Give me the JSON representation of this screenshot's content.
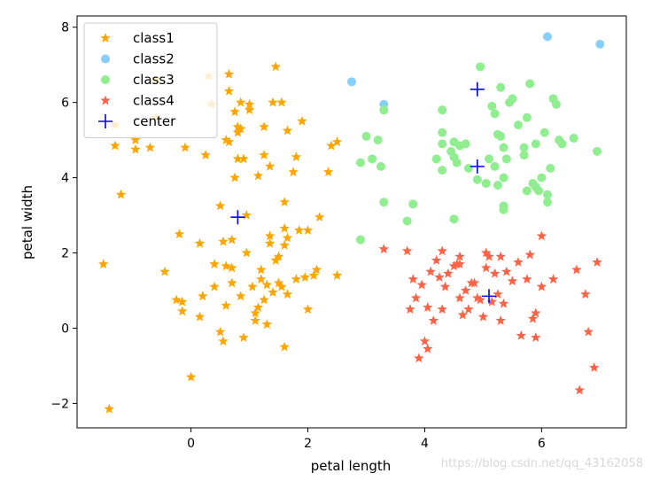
{
  "chart_data": {
    "type": "scatter",
    "xlabel": "petal length",
    "ylabel": "petal width",
    "xlim": [
      -1.95,
      7.45
    ],
    "ylim": [
      -2.65,
      8.3
    ],
    "xticks": [
      0,
      2,
      4,
      6
    ],
    "yticks": [
      -2,
      0,
      2,
      4,
      6,
      8
    ],
    "grid": false,
    "legend_position": "top-left",
    "series": [
      {
        "name": "class1",
        "marker": "star",
        "color": "#FFA500",
        "points": [
          [
            -1.5,
            1.7
          ],
          [
            -1.4,
            -2.15
          ],
          [
            -1.3,
            4.85
          ],
          [
            -1.3,
            5.4
          ],
          [
            -1.2,
            3.55
          ],
          [
            -0.95,
            5.0
          ],
          [
            -0.95,
            4.75
          ],
          [
            -0.7,
            4.8
          ],
          [
            -0.6,
            5.6
          ],
          [
            -0.6,
            6.6
          ],
          [
            -0.45,
            1.5
          ],
          [
            -0.25,
            0.75
          ],
          [
            -0.2,
            2.5
          ],
          [
            -0.15,
            0.45
          ],
          [
            -0.15,
            0.7
          ],
          [
            -0.1,
            4.8
          ],
          [
            0.0,
            -1.3
          ],
          [
            0.15,
            0.3
          ],
          [
            0.15,
            2.25
          ],
          [
            0.2,
            0.85
          ],
          [
            0.25,
            4.6
          ],
          [
            0.3,
            6.7
          ],
          [
            0.35,
            5.95
          ],
          [
            0.4,
            1.1
          ],
          [
            0.4,
            1.7
          ],
          [
            0.5,
            3.25
          ],
          [
            0.5,
            -0.1
          ],
          [
            0.55,
            -0.35
          ],
          [
            0.55,
            2.3
          ],
          [
            0.6,
            1.65
          ],
          [
            0.6,
            0.6
          ],
          [
            0.6,
            5.0
          ],
          [
            0.65,
            4.95
          ],
          [
            0.65,
            6.75
          ],
          [
            0.65,
            6.3
          ],
          [
            0.7,
            1.6
          ],
          [
            0.7,
            1.2
          ],
          [
            0.7,
            2.35
          ],
          [
            0.75,
            4.0
          ],
          [
            0.75,
            5.75
          ],
          [
            0.8,
            5.2
          ],
          [
            0.8,
            5.35
          ],
          [
            0.8,
            4.5
          ],
          [
            0.85,
            0.85
          ],
          [
            0.85,
            6.0
          ],
          [
            0.85,
            5.3
          ],
          [
            0.9,
            4.5
          ],
          [
            0.9,
            -0.25
          ],
          [
            0.95,
            3.0
          ],
          [
            0.95,
            2.0
          ],
          [
            1.0,
            5.95
          ],
          [
            1.0,
            5.8
          ],
          [
            1.05,
            1.1
          ],
          [
            1.1,
            0.2
          ],
          [
            1.1,
            0.4
          ],
          [
            1.15,
            4.05
          ],
          [
            1.15,
            0.55
          ],
          [
            1.2,
            1.55
          ],
          [
            1.2,
            1.3
          ],
          [
            1.25,
            4.6
          ],
          [
            1.25,
            5.35
          ],
          [
            1.25,
            0.75
          ],
          [
            1.3,
            0.1
          ],
          [
            1.3,
            1.15
          ],
          [
            1.35,
            2.45
          ],
          [
            1.35,
            2.25
          ],
          [
            1.35,
            4.3
          ],
          [
            1.4,
            0.95
          ],
          [
            1.4,
            6.0
          ],
          [
            1.45,
            6.95
          ],
          [
            1.45,
            1.8
          ],
          [
            1.5,
            1.2
          ],
          [
            1.5,
            1.9
          ],
          [
            1.55,
            1.1
          ],
          [
            1.55,
            6.0
          ],
          [
            1.6,
            3.35
          ],
          [
            1.6,
            2.65
          ],
          [
            1.6,
            2.2
          ],
          [
            1.6,
            -0.5
          ],
          [
            1.65,
            5.25
          ],
          [
            1.65,
            0.9
          ],
          [
            1.65,
            2.4
          ],
          [
            1.75,
            4.15
          ],
          [
            1.8,
            4.55
          ],
          [
            1.8,
            1.3
          ],
          [
            1.85,
            2.6
          ],
          [
            1.9,
            5.5
          ],
          [
            1.95,
            1.35
          ],
          [
            2.0,
            0.5
          ],
          [
            2.0,
            2.6
          ],
          [
            2.1,
            1.4
          ],
          [
            2.15,
            1.55
          ],
          [
            2.2,
            2.95
          ],
          [
            2.35,
            4.15
          ],
          [
            2.4,
            4.85
          ],
          [
            2.5,
            1.4
          ],
          [
            2.5,
            4.95
          ]
        ]
      },
      {
        "name": "class2",
        "marker": "circle",
        "color": "#87CEFA",
        "points": [
          [
            2.75,
            6.55
          ],
          [
            3.3,
            5.95
          ],
          [
            6.1,
            7.75
          ],
          [
            7.0,
            7.55
          ]
        ]
      },
      {
        "name": "class3",
        "marker": "circle",
        "color": "#90EE90",
        "points": [
          [
            2.9,
            2.35
          ],
          [
            2.9,
            4.4
          ],
          [
            3.0,
            5.1
          ],
          [
            3.1,
            4.5
          ],
          [
            3.2,
            5.0
          ],
          [
            3.25,
            4.3
          ],
          [
            3.3,
            5.8
          ],
          [
            3.3,
            3.35
          ],
          [
            3.7,
            2.85
          ],
          [
            3.8,
            3.3
          ],
          [
            4.2,
            4.5
          ],
          [
            4.3,
            5.8
          ],
          [
            4.3,
            5.2
          ],
          [
            4.3,
            4.9
          ],
          [
            4.3,
            4.2
          ],
          [
            4.45,
            4.7
          ],
          [
            4.5,
            4.55
          ],
          [
            4.5,
            4.95
          ],
          [
            4.5,
            2.9
          ],
          [
            4.55,
            4.4
          ],
          [
            4.6,
            4.85
          ],
          [
            4.7,
            4.9
          ],
          [
            4.75,
            4.25
          ],
          [
            4.9,
            3.95
          ],
          [
            4.95,
            6.95
          ],
          [
            5.05,
            3.85
          ],
          [
            5.1,
            4.5
          ],
          [
            5.15,
            5.9
          ],
          [
            5.2,
            5.7
          ],
          [
            5.2,
            4.3
          ],
          [
            5.25,
            5.15
          ],
          [
            5.25,
            3.8
          ],
          [
            5.3,
            6.4
          ],
          [
            5.3,
            5.1
          ],
          [
            5.35,
            4.8
          ],
          [
            5.35,
            4.0
          ],
          [
            5.35,
            3.25
          ],
          [
            5.35,
            3.15
          ],
          [
            5.4,
            4.5
          ],
          [
            5.45,
            6.0
          ],
          [
            5.5,
            6.1
          ],
          [
            5.6,
            5.4
          ],
          [
            5.7,
            4.8
          ],
          [
            5.7,
            4.6
          ],
          [
            5.75,
            5.6
          ],
          [
            5.75,
            3.65
          ],
          [
            5.8,
            6.5
          ],
          [
            5.85,
            3.85
          ],
          [
            5.9,
            3.75
          ],
          [
            5.9,
            4.9
          ],
          [
            5.95,
            3.65
          ],
          [
            6.0,
            4.0
          ],
          [
            6.05,
            5.2
          ],
          [
            6.1,
            3.55
          ],
          [
            6.1,
            3.35
          ],
          [
            6.15,
            4.25
          ],
          [
            6.2,
            6.1
          ],
          [
            6.25,
            5.95
          ],
          [
            6.3,
            5.0
          ],
          [
            6.35,
            4.9
          ],
          [
            6.55,
            5.05
          ],
          [
            6.95,
            4.7
          ]
        ]
      },
      {
        "name": "class4",
        "marker": "star",
        "color": "#FF6347",
        "points": [
          [
            3.3,
            2.1
          ],
          [
            3.7,
            2.05
          ],
          [
            3.75,
            0.5
          ],
          [
            3.8,
            1.3
          ],
          [
            3.85,
            0.8
          ],
          [
            3.9,
            -0.8
          ],
          [
            3.95,
            1.15
          ],
          [
            4.0,
            -0.35
          ],
          [
            4.05,
            -0.55
          ],
          [
            4.05,
            0.55
          ],
          [
            4.1,
            1.5
          ],
          [
            4.15,
            0.2
          ],
          [
            4.2,
            1.8
          ],
          [
            4.25,
            1.35
          ],
          [
            4.3,
            0.5
          ],
          [
            4.3,
            2.05
          ],
          [
            4.35,
            1.1
          ],
          [
            4.4,
            1.45
          ],
          [
            4.5,
            1.65
          ],
          [
            4.55,
            1.7
          ],
          [
            4.6,
            0.8
          ],
          [
            4.6,
            1.7
          ],
          [
            4.6,
            1.9
          ],
          [
            4.65,
            0.35
          ],
          [
            4.7,
            1.0
          ],
          [
            4.75,
            0.5
          ],
          [
            4.8,
            1.2
          ],
          [
            4.85,
            1.2
          ],
          [
            4.9,
            0.8
          ],
          [
            4.95,
            0.75
          ],
          [
            5.0,
            0.3
          ],
          [
            5.05,
            1.6
          ],
          [
            5.05,
            2.0
          ],
          [
            5.1,
            1.9
          ],
          [
            5.15,
            0.7
          ],
          [
            5.2,
            1.45
          ],
          [
            5.25,
            0.9
          ],
          [
            5.3,
            1.9
          ],
          [
            5.3,
            0.2
          ],
          [
            5.35,
            0.65
          ],
          [
            5.4,
            1.5
          ],
          [
            5.5,
            1.25
          ],
          [
            5.6,
            1.75
          ],
          [
            5.65,
            -0.2
          ],
          [
            5.75,
            1.3
          ],
          [
            5.8,
            1.95
          ],
          [
            5.85,
            0.25
          ],
          [
            5.9,
            -0.25
          ],
          [
            5.9,
            0.4
          ],
          [
            6.0,
            1.1
          ],
          [
            6.0,
            2.45
          ],
          [
            6.2,
            1.3
          ],
          [
            6.6,
            1.55
          ],
          [
            6.65,
            -1.65
          ],
          [
            6.75,
            0.9
          ],
          [
            6.8,
            -0.1
          ],
          [
            6.9,
            -1.05
          ],
          [
            6.95,
            1.75
          ]
        ]
      },
      {
        "name": "center",
        "marker": "plus",
        "color": "#0000FF",
        "points": [
          [
            0.8,
            2.95
          ],
          [
            4.9,
            6.35
          ],
          [
            4.9,
            4.3
          ],
          [
            5.1,
            0.85
          ]
        ]
      }
    ]
  },
  "watermark": "https://blog.csdn.net/qq_43162058"
}
